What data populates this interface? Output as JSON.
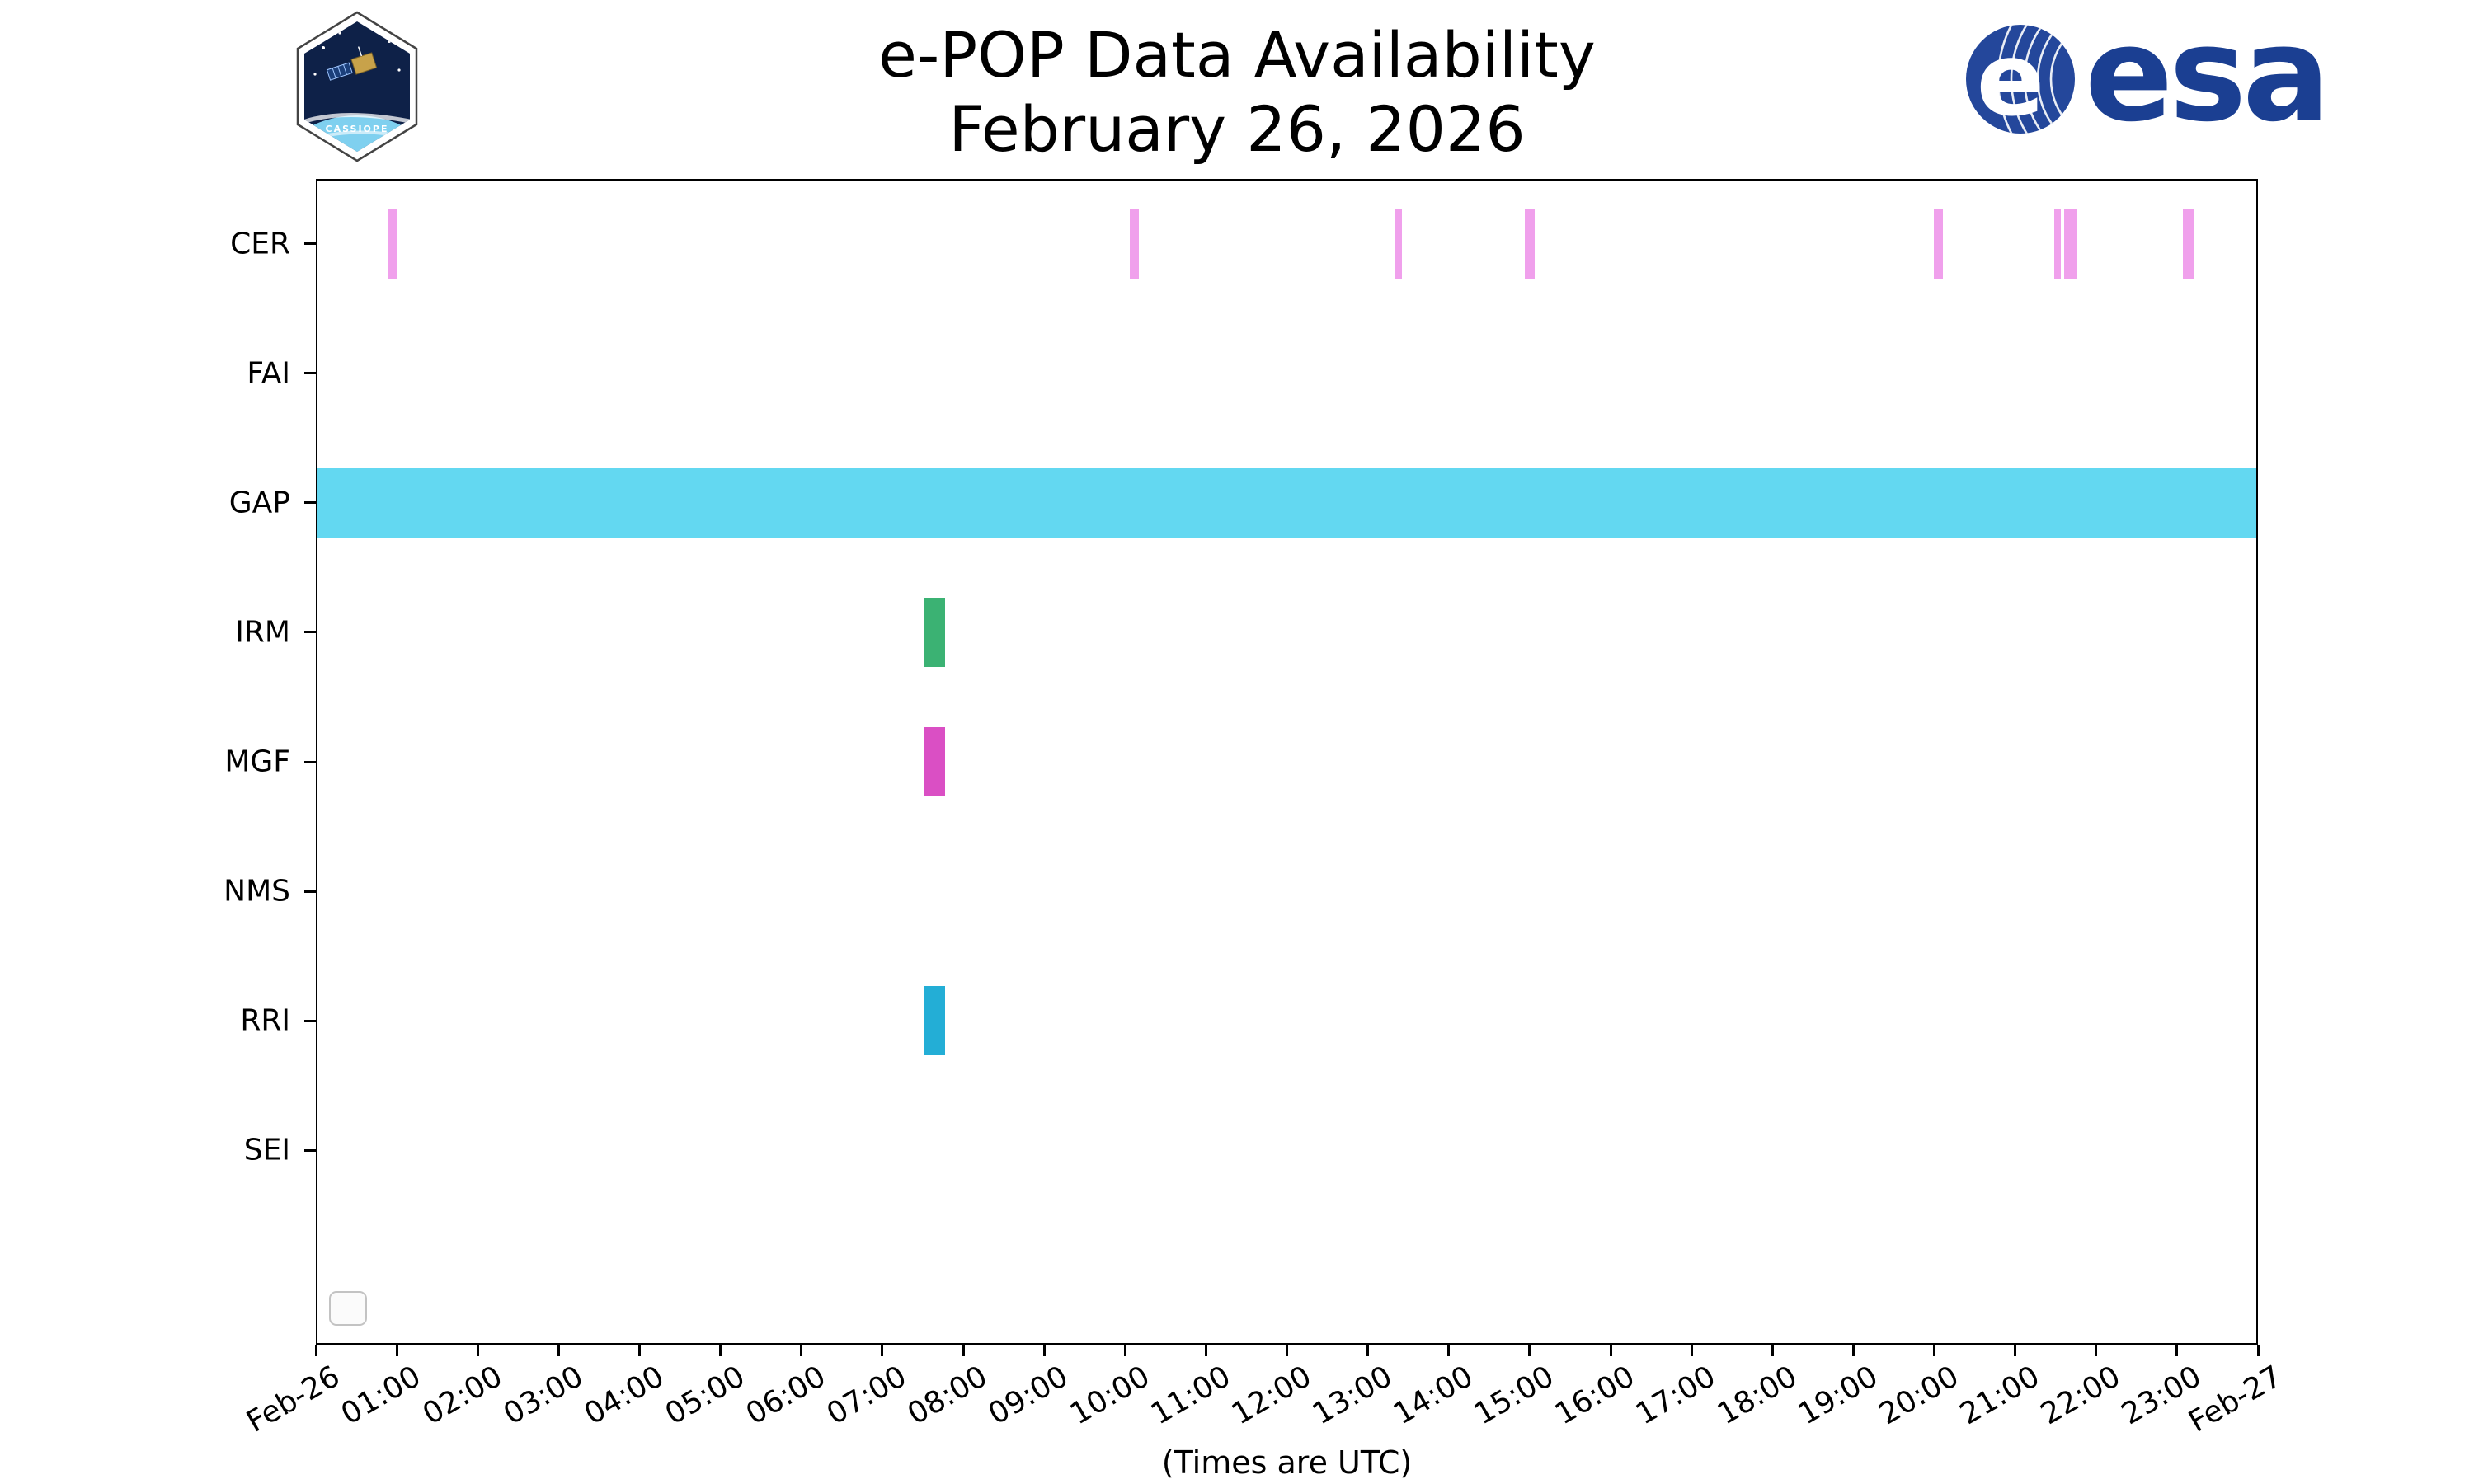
{
  "header": {
    "title_line1": "e-POP Data Availability",
    "title_line2": "February 26, 2026",
    "esa_wordmark": "esa",
    "patch_text": "CASSIOPE"
  },
  "axis": {
    "x_tick_labels": [
      "Feb-26",
      "01:00",
      "02:00",
      "03:00",
      "04:00",
      "05:00",
      "06:00",
      "07:00",
      "08:00",
      "09:00",
      "10:00",
      "11:00",
      "12:00",
      "13:00",
      "14:00",
      "15:00",
      "16:00",
      "17:00",
      "18:00",
      "19:00",
      "20:00",
      "21:00",
      "22:00",
      "23:00",
      "Feb-27"
    ],
    "xlabel": "(Times are UTC)"
  },
  "chart_data": {
    "type": "timeline",
    "title": "e-POP Data Availability",
    "subtitle": "February 26, 2026",
    "xlabel": "(Times are UTC)",
    "x_unit": "hours UTC on 2026-02-26",
    "x_range_hours": [
      0,
      24
    ],
    "grid": false,
    "rows": [
      {
        "label": "CER",
        "color": "#F0A0EC",
        "intervals_hours": [
          [
            0.89,
            1.01
          ],
          [
            10.06,
            10.17
          ],
          [
            13.34,
            13.41
          ],
          [
            14.94,
            15.06
          ],
          [
            19.99,
            20.11
          ],
          [
            21.48,
            21.55
          ],
          [
            21.6,
            21.77
          ],
          [
            23.07,
            23.21
          ]
        ]
      },
      {
        "label": "FAI",
        "color": "#cccccc",
        "intervals_hours": []
      },
      {
        "label": "GAP",
        "color": "#63D8F1",
        "intervals_hours": [
          [
            0,
            7.57
          ],
          [
            7.57,
            24
          ]
        ]
      },
      {
        "label": "IRM",
        "color": "#3BB273",
        "intervals_hours": [
          [
            7.52,
            7.78
          ]
        ]
      },
      {
        "label": "MGF",
        "color": "#DA4FC4",
        "intervals_hours": [
          [
            7.52,
            7.78
          ]
        ]
      },
      {
        "label": "NMS",
        "color": "#cccccc",
        "intervals_hours": []
      },
      {
        "label": "RRI",
        "color": "#23AED6",
        "intervals_hours": [
          [
            7.52,
            7.78
          ]
        ]
      },
      {
        "label": "SEI",
        "color": "#cccccc",
        "intervals_hours": []
      }
    ]
  }
}
